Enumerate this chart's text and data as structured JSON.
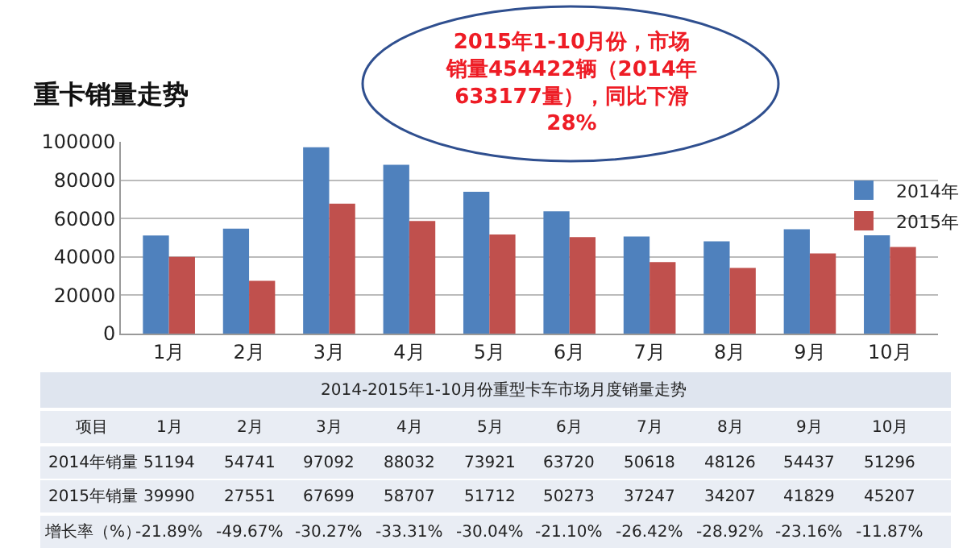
{
  "chart_data": {
    "type": "bar",
    "title": "重卡销量走势",
    "categories": [
      "1月",
      "2月",
      "3月",
      "4月",
      "5月",
      "6月",
      "7月",
      "8月",
      "9月",
      "10月"
    ],
    "series": [
      {
        "name": "2014年",
        "color": "#4f81bd",
        "values": [
          51194,
          54741,
          97092,
          88032,
          73921,
          63720,
          50618,
          48126,
          54437,
          51296
        ]
      },
      {
        "name": "2015年",
        "color": "#c0504d",
        "values": [
          39990,
          27551,
          67699,
          58707,
          51712,
          50273,
          37247,
          34207,
          41829,
          45207
        ]
      }
    ],
    "ylim": [
      0,
      100000
    ],
    "yticks": [
      0,
      20000,
      40000,
      60000,
      80000,
      100000
    ],
    "grid": "y",
    "legend": "top right",
    "data_labels": true,
    "annotations": [
      "2015年1-10月份，市场销量454422辆（2014年633177量），同比下滑28%",
      "2014-2015年1-10月份重型卡车市场月度销量走势",
      "项目",
      "2014年销量",
      "2015年销量",
      "增长率（%）",
      "-21.89%",
      "-49.67%",
      "-30.27%",
      "-33.31%",
      "-30.04%",
      "-21.10%",
      "-26.42%",
      "-28.92%",
      "-23.16%",
      "-11.87%"
    ]
  }
}
